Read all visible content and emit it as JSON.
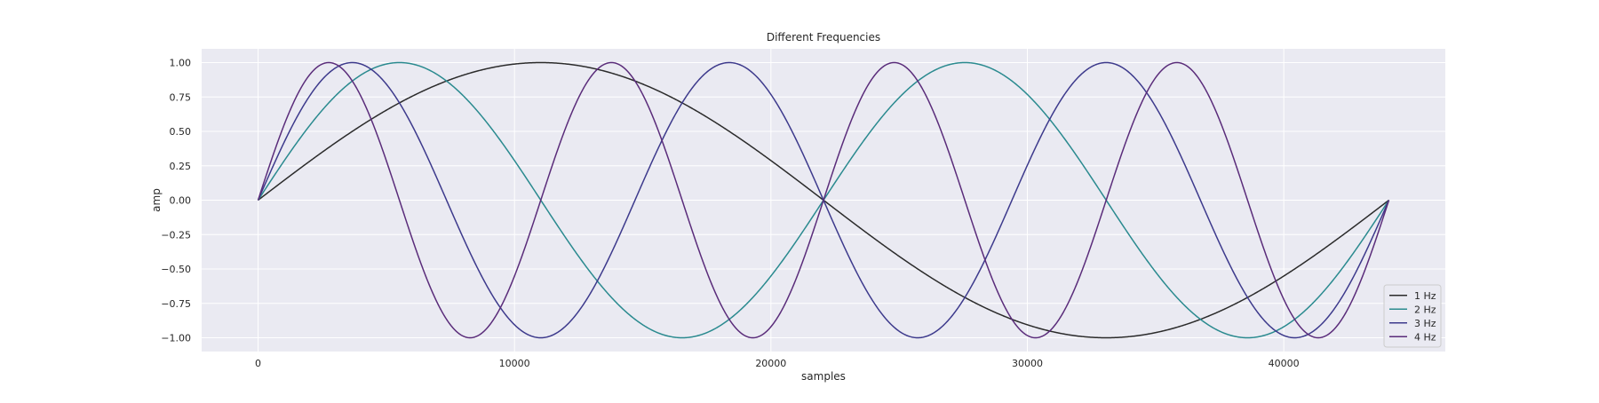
{
  "chart_data": {
    "type": "line",
    "title": "Different Frequencies",
    "xlabel": "samples",
    "ylabel": "amp",
    "xlim": [
      -2200,
      46300
    ],
    "ylim": [
      -1.1,
      1.1
    ],
    "x_ticks": [
      0,
      10000,
      20000,
      30000,
      40000
    ],
    "x_tick_labels": [
      "0",
      "10000",
      "20000",
      "30000",
      "40000"
    ],
    "y_ticks": [
      1.0,
      0.75,
      0.5,
      0.25,
      0.0,
      -0.25,
      -0.5,
      -0.75,
      -1.0
    ],
    "y_tick_labels": [
      "1.00",
      "0.75",
      "0.50",
      "0.25",
      "0.00",
      "−0.25",
      "−0.50",
      "−0.75",
      "−1.00"
    ],
    "grid": true,
    "legend_position": "lower right",
    "sample_count": 44100,
    "series": [
      {
        "name": "1 Hz",
        "frequency_hz": 1,
        "color": "#2b2b2b",
        "function": "sin(2π·1·n/44100)",
        "x_start": 0,
        "x_end": 44100
      },
      {
        "name": "2 Hz",
        "frequency_hz": 2,
        "color": "#2a8a8f",
        "function": "sin(2π·2·n/44100)",
        "x_start": 0,
        "x_end": 44100
      },
      {
        "name": "3 Hz",
        "frequency_hz": 3,
        "color": "#3d3a8c",
        "function": "sin(2π·3·n/44100)",
        "x_start": 0,
        "x_end": 44100
      },
      {
        "name": "4 Hz",
        "frequency_hz": 4,
        "color": "#5a2c7a",
        "function": "sin(2π·4·n/44100)",
        "x_start": 0,
        "x_end": 44100
      }
    ],
    "background_color": "#eaeaf2",
    "grid_color": "#ffffff"
  }
}
